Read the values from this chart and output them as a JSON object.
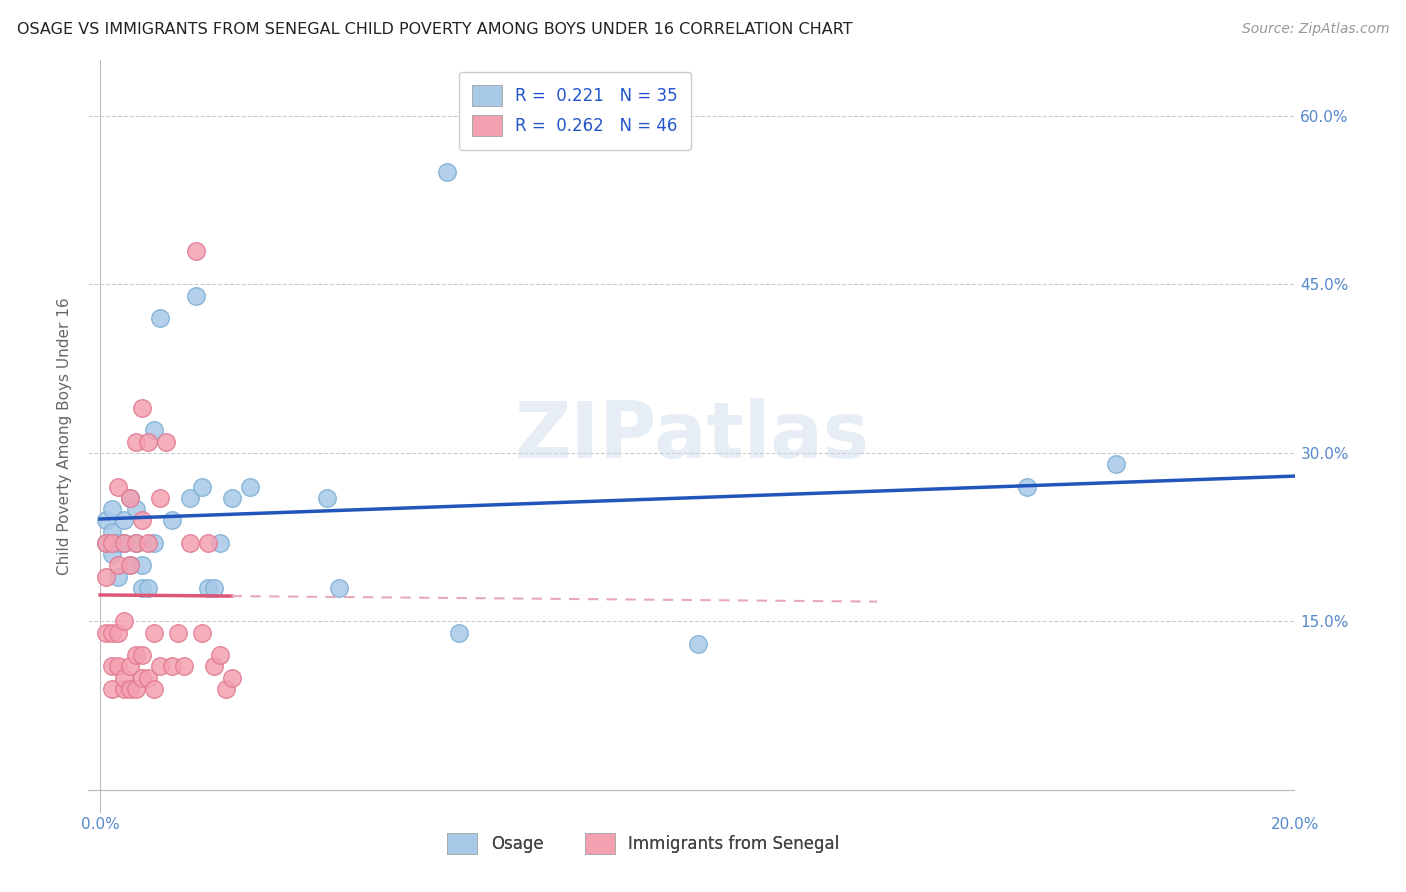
{
  "title": "OSAGE VS IMMIGRANTS FROM SENEGAL CHILD POVERTY AMONG BOYS UNDER 16 CORRELATION CHART",
  "source": "Source: ZipAtlas.com",
  "ylabel": "Child Poverty Among Boys Under 16",
  "xlim": [
    0.0,
    0.2
  ],
  "ylim": [
    0.0,
    0.65
  ],
  "ytick_positions": [
    0.0,
    0.15,
    0.3,
    0.45,
    0.6
  ],
  "ytick_labels_right": [
    "",
    "15.0%",
    "30.0%",
    "45.0%",
    "60.0%"
  ],
  "xtick_positions": [
    0.0,
    0.04,
    0.08,
    0.12,
    0.16,
    0.2
  ],
  "xtick_labels": [
    "0.0%",
    "",
    "",
    "",
    "",
    "20.0%"
  ],
  "bottom_legend": [
    "Osage",
    "Immigrants from Senegal"
  ],
  "osage_color": "#a8c8e8",
  "senegal_color": "#f4a0b0",
  "osage_marker_edge": "#7bafd4",
  "senegal_marker_edge": "#e07890",
  "osage_line_color": "#2255bb",
  "senegal_line_color": "#dd5577",
  "senegal_dashed_color": "#e8a8b8",
  "R_osage": 0.221,
  "N_osage": 35,
  "R_senegal": 0.262,
  "N_senegal": 46,
  "legend_text_color": "#2255cc",
  "legend_N_color": "#dd4444",
  "osage_x": [
    0.001,
    0.001,
    0.002,
    0.002,
    0.002,
    0.003,
    0.003,
    0.004,
    0.004,
    0.005,
    0.005,
    0.006,
    0.006,
    0.007,
    0.007,
    0.008,
    0.009,
    0.009,
    0.01,
    0.012,
    0.015,
    0.016,
    0.017,
    0.018,
    0.019,
    0.02,
    0.022,
    0.025,
    0.038,
    0.04,
    0.058,
    0.06,
    0.1,
    0.155,
    0.17
  ],
  "osage_y": [
    0.22,
    0.24,
    0.21,
    0.23,
    0.25,
    0.19,
    0.22,
    0.22,
    0.24,
    0.2,
    0.26,
    0.22,
    0.25,
    0.18,
    0.2,
    0.18,
    0.22,
    0.32,
    0.42,
    0.24,
    0.26,
    0.44,
    0.27,
    0.18,
    0.18,
    0.22,
    0.26,
    0.27,
    0.26,
    0.18,
    0.55,
    0.14,
    0.13,
    0.27,
    0.29
  ],
  "senegal_x": [
    0.001,
    0.001,
    0.001,
    0.002,
    0.002,
    0.002,
    0.002,
    0.003,
    0.003,
    0.003,
    0.003,
    0.004,
    0.004,
    0.004,
    0.004,
    0.005,
    0.005,
    0.005,
    0.005,
    0.006,
    0.006,
    0.006,
    0.006,
    0.007,
    0.007,
    0.007,
    0.007,
    0.008,
    0.008,
    0.008,
    0.009,
    0.009,
    0.01,
    0.01,
    0.011,
    0.012,
    0.013,
    0.014,
    0.015,
    0.016,
    0.017,
    0.018,
    0.019,
    0.02,
    0.021,
    0.022
  ],
  "senegal_y": [
    0.14,
    0.19,
    0.22,
    0.09,
    0.11,
    0.14,
    0.22,
    0.11,
    0.14,
    0.2,
    0.27,
    0.09,
    0.1,
    0.15,
    0.22,
    0.09,
    0.11,
    0.2,
    0.26,
    0.09,
    0.12,
    0.22,
    0.31,
    0.1,
    0.12,
    0.24,
    0.34,
    0.1,
    0.22,
    0.31,
    0.09,
    0.14,
    0.11,
    0.26,
    0.31,
    0.11,
    0.14,
    0.11,
    0.22,
    0.48,
    0.14,
    0.22,
    0.11,
    0.12,
    0.09,
    0.1
  ],
  "watermark": "ZIPatlas",
  "background_color": "#ffffff",
  "grid_color": "#cccccc",
  "tick_label_color": "#5588cc"
}
